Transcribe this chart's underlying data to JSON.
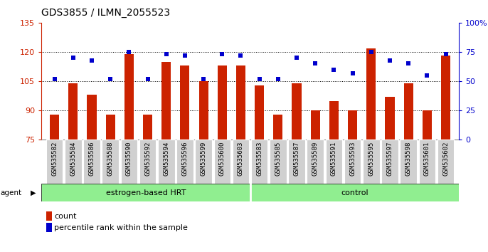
{
  "title": "GDS3855 / ILMN_2055523",
  "categories": [
    "GSM535582",
    "GSM535584",
    "GSM535586",
    "GSM535588",
    "GSM535590",
    "GSM535592",
    "GSM535594",
    "GSM535596",
    "GSM535599",
    "GSM535600",
    "GSM535603",
    "GSM535583",
    "GSM535585",
    "GSM535587",
    "GSM535589",
    "GSM535591",
    "GSM535593",
    "GSM535595",
    "GSM535597",
    "GSM535598",
    "GSM535601",
    "GSM535602"
  ],
  "bar_values": [
    88,
    104,
    98,
    88,
    119,
    88,
    115,
    113,
    105,
    113,
    113,
    103,
    88,
    104,
    90,
    95,
    90,
    122,
    97,
    104,
    90,
    118
  ],
  "dot_values": [
    52,
    70,
    68,
    52,
    75,
    52,
    73,
    72,
    52,
    73,
    72,
    52,
    52,
    70,
    65,
    60,
    57,
    75,
    68,
    65,
    55,
    73
  ],
  "group1_label": "estrogen-based HRT",
  "group2_label": "control",
  "group1_count": 11,
  "group2_count": 11,
  "ylim_left": [
    75,
    135
  ],
  "ylim_right": [
    0,
    100
  ],
  "yticks_left": [
    75,
    90,
    105,
    120,
    135
  ],
  "yticks_right": [
    0,
    25,
    50,
    75,
    100
  ],
  "bar_color": "#cc2200",
  "dot_color": "#0000cc",
  "group_bg_color": "#90ee90",
  "tick_bg_color": "#d0d0d0",
  "agent_label": "agent",
  "legend_count_label": "count",
  "legend_pct_label": "percentile rank within the sample",
  "dotted_lines": [
    90,
    105,
    120
  ],
  "figsize": [
    6.86,
    3.54
  ],
  "dpi": 100
}
